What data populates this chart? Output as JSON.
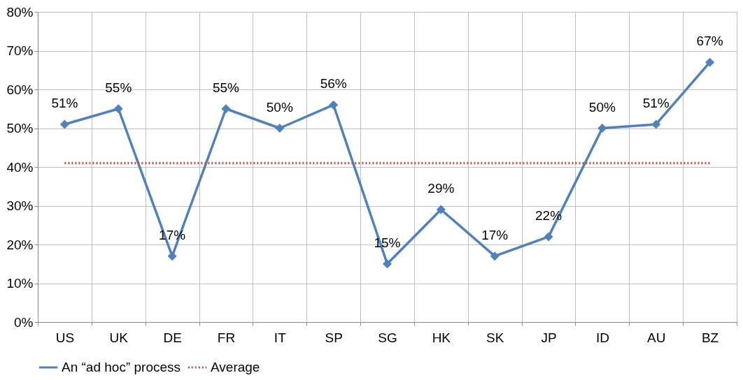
{
  "chart_data": {
    "type": "line",
    "categories": [
      "US",
      "UK",
      "DE",
      "FR",
      "IT",
      "SP",
      "SG",
      "HK",
      "SK",
      "JP",
      "ID",
      "AU",
      "BZ"
    ],
    "series": [
      {
        "name": "An “ad hoc” process",
        "color": "#4f81bd",
        "marker": "diamond",
        "line_style": "solid",
        "values": [
          51,
          55,
          17,
          55,
          50,
          56,
          15,
          29,
          17,
          22,
          50,
          51,
          67
        ],
        "value_labels": [
          "51%",
          "55%",
          "17%",
          "55%",
          "50%",
          "56%",
          "15%",
          "29%",
          "17%",
          "22%",
          "50%",
          "51%",
          "67%"
        ]
      },
      {
        "name": "Average",
        "color": "#c0504d",
        "marker": "none",
        "line_style": "dotted",
        "values": [
          41,
          41,
          41,
          41,
          41,
          41,
          41,
          41,
          41,
          41,
          41,
          41,
          41
        ]
      }
    ],
    "ylim": [
      0,
      80
    ],
    "yticks": [
      {
        "value": 0,
        "label": "0%"
      },
      {
        "value": 10,
        "label": "10%"
      },
      {
        "value": 20,
        "label": "20%"
      },
      {
        "value": 30,
        "label": "30%"
      },
      {
        "value": 40,
        "label": "40%"
      },
      {
        "value": 50,
        "label": "50%"
      },
      {
        "value": 60,
        "label": "60%"
      },
      {
        "value": 70,
        "label": "70%"
      },
      {
        "value": 80,
        "label": "80%"
      }
    ],
    "grid": true,
    "legend": "bottom"
  }
}
